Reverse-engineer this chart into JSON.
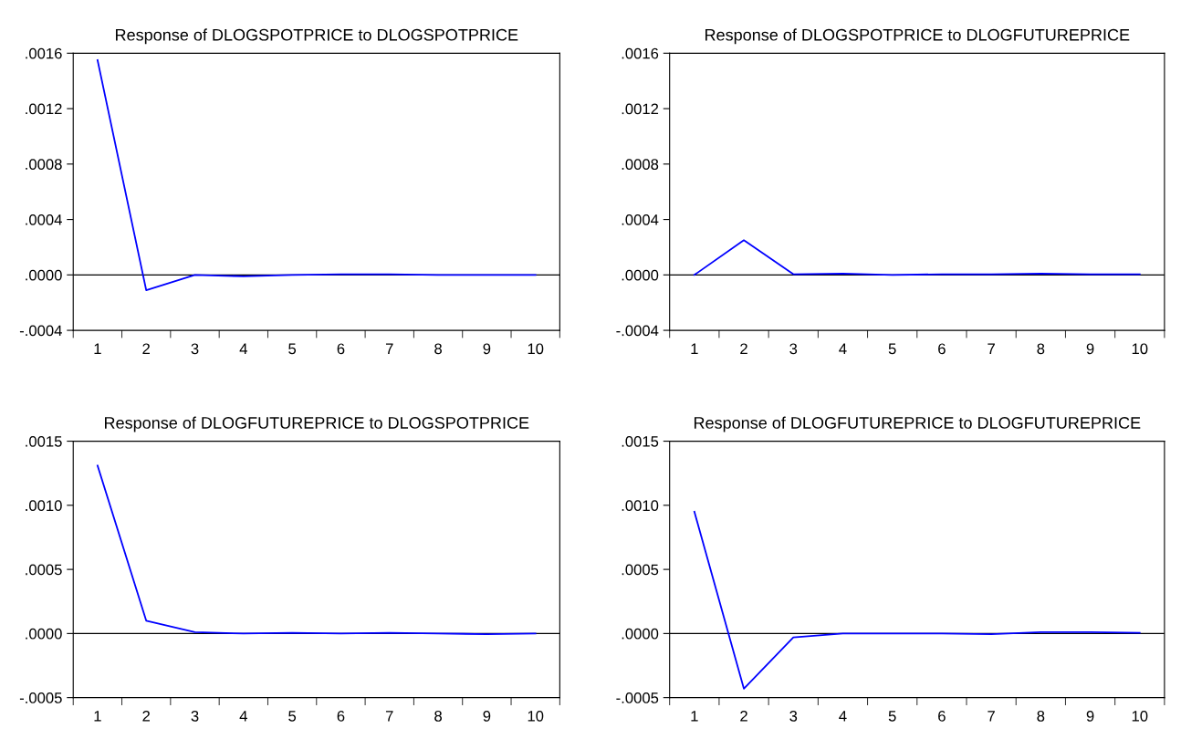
{
  "chart_data": [
    {
      "type": "line",
      "title": "Response of DLOGSPOTPRICE to DLOGSPOTPRICE",
      "categories": [
        "1",
        "2",
        "3",
        "4",
        "5",
        "6",
        "7",
        "8",
        "9",
        "10"
      ],
      "series": [
        {
          "color": "#0000ff",
          "values": [
            0.00155,
            -0.00011,
            0.0,
            -1e-05,
            0.0,
            5e-06,
            5e-06,
            0.0,
            0.0,
            0.0
          ]
        }
      ],
      "ylim": [
        -0.0004,
        0.0016
      ],
      "yticks": [
        {
          "value": -0.0004,
          "label": "-.0004"
        },
        {
          "value": 0.0,
          "label": ".0000"
        },
        {
          "value": 0.0004,
          "label": ".0004"
        },
        {
          "value": 0.0008,
          "label": ".0008"
        },
        {
          "value": 0.0012,
          "label": ".0012"
        },
        {
          "value": 0.0016,
          "label": ".0016"
        }
      ],
      "ref_lines": [
        {
          "axis": "y",
          "value": 0,
          "color": "#000000"
        }
      ],
      "grid": false,
      "legend": false
    },
    {
      "type": "line",
      "title": "Response of DLOGSPOTPRICE to DLOGFUTUREPRICE",
      "categories": [
        "1",
        "2",
        "3",
        "4",
        "5",
        "6",
        "7",
        "8",
        "9",
        "10"
      ],
      "series": [
        {
          "color": "#0000ff",
          "values": [
            0.0,
            0.00025,
            5e-06,
            1e-05,
            0.0,
            5e-06,
            5e-06,
            1e-05,
            5e-06,
            5e-06
          ]
        }
      ],
      "ylim": [
        -0.0004,
        0.0016
      ],
      "yticks": [
        {
          "value": -0.0004,
          "label": "-.0004"
        },
        {
          "value": 0.0,
          "label": ".0000"
        },
        {
          "value": 0.0004,
          "label": ".0004"
        },
        {
          "value": 0.0008,
          "label": ".0008"
        },
        {
          "value": 0.0012,
          "label": ".0012"
        },
        {
          "value": 0.0016,
          "label": ".0016"
        }
      ],
      "ref_lines": [
        {
          "axis": "y",
          "value": 0,
          "color": "#000000"
        }
      ],
      "grid": false,
      "legend": false
    },
    {
      "type": "line",
      "title": "Response of DLOGFUTUREPRICE to DLOGSPOTPRICE",
      "categories": [
        "1",
        "2",
        "3",
        "4",
        "5",
        "6",
        "7",
        "8",
        "9",
        "10"
      ],
      "series": [
        {
          "color": "#0000ff",
          "values": [
            0.00131,
            0.0001,
            1e-05,
            0.0,
            5e-06,
            0.0,
            5e-06,
            0.0,
            -5e-06,
            0.0
          ]
        }
      ],
      "ylim": [
        -0.0005,
        0.0015
      ],
      "yticks": [
        {
          "value": -0.0005,
          "label": "-.0005"
        },
        {
          "value": 0.0,
          "label": ".0000"
        },
        {
          "value": 0.0005,
          "label": ".0005"
        },
        {
          "value": 0.001,
          "label": ".0010"
        },
        {
          "value": 0.0015,
          "label": ".0015"
        }
      ],
      "ref_lines": [
        {
          "axis": "y",
          "value": 0,
          "color": "#000000"
        }
      ],
      "grid": false,
      "legend": false
    },
    {
      "type": "line",
      "title": "Response of DLOGFUTUREPRICE to DLOGFUTUREPRICE",
      "categories": [
        "1",
        "2",
        "3",
        "4",
        "5",
        "6",
        "7",
        "8",
        "9",
        "10"
      ],
      "series": [
        {
          "color": "#0000ff",
          "values": [
            0.00095,
            -0.00043,
            -3e-05,
            0.0,
            0.0,
            0.0,
            -5e-06,
            1e-05,
            1e-05,
            5e-06
          ]
        }
      ],
      "ylim": [
        -0.0005,
        0.0015
      ],
      "yticks": [
        {
          "value": -0.0005,
          "label": "-.0005"
        },
        {
          "value": 0.0,
          "label": ".0000"
        },
        {
          "value": 0.0005,
          "label": ".0005"
        },
        {
          "value": 0.001,
          "label": ".0010"
        },
        {
          "value": 0.0015,
          "label": ".0015"
        }
      ],
      "ref_lines": [
        {
          "axis": "y",
          "value": 0,
          "color": "#000000"
        }
      ],
      "grid": false,
      "legend": false
    }
  ]
}
